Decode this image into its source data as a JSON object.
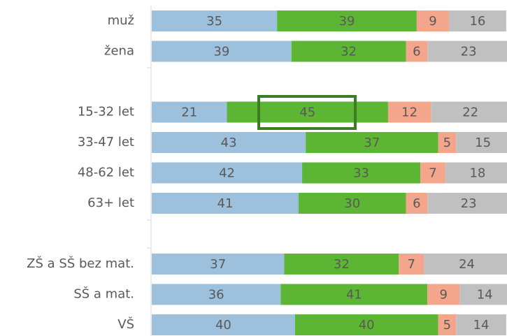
{
  "chart_data": {
    "type": "stacked_barh",
    "categories": [
      "muž",
      "žena",
      null,
      "15-32 let",
      "33-47 let",
      "48-62 let",
      "63+ let",
      null,
      "ZŠ a SŠ bez mat.",
      "SŠ a mat.",
      "VŠ"
    ],
    "series": [
      {
        "color": "#9dc0dc",
        "values": [
          35,
          39,
          null,
          21,
          43,
          42,
          41,
          null,
          37,
          36,
          40
        ]
      },
      {
        "color": "#5cb533",
        "values": [
          39,
          32,
          null,
          45,
          37,
          33,
          30,
          null,
          32,
          41,
          40
        ]
      },
      {
        "color": "#f4a68c",
        "values": [
          9,
          6,
          null,
          12,
          5,
          7,
          6,
          null,
          7,
          9,
          5
        ]
      },
      {
        "color": "#c0c0c0",
        "values": [
          16,
          23,
          null,
          22,
          15,
          18,
          23,
          null,
          24,
          14,
          14
        ]
      }
    ],
    "xlim": [
      0,
      100
    ]
  }
}
